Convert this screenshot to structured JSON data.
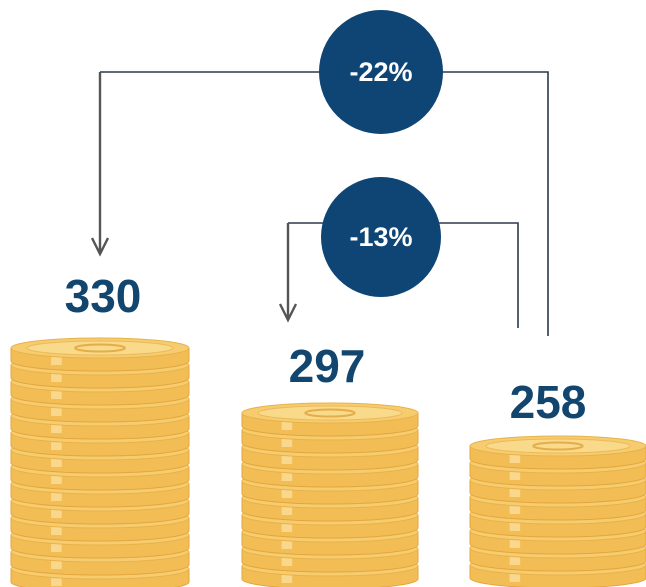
{
  "stacks": [
    {
      "amount": 330
    },
    {
      "amount": 297
    },
    {
      "amount": 258
    }
  ],
  "changes": [
    {
      "label": "-22%"
    },
    {
      "label": "-13%"
    }
  ]
}
